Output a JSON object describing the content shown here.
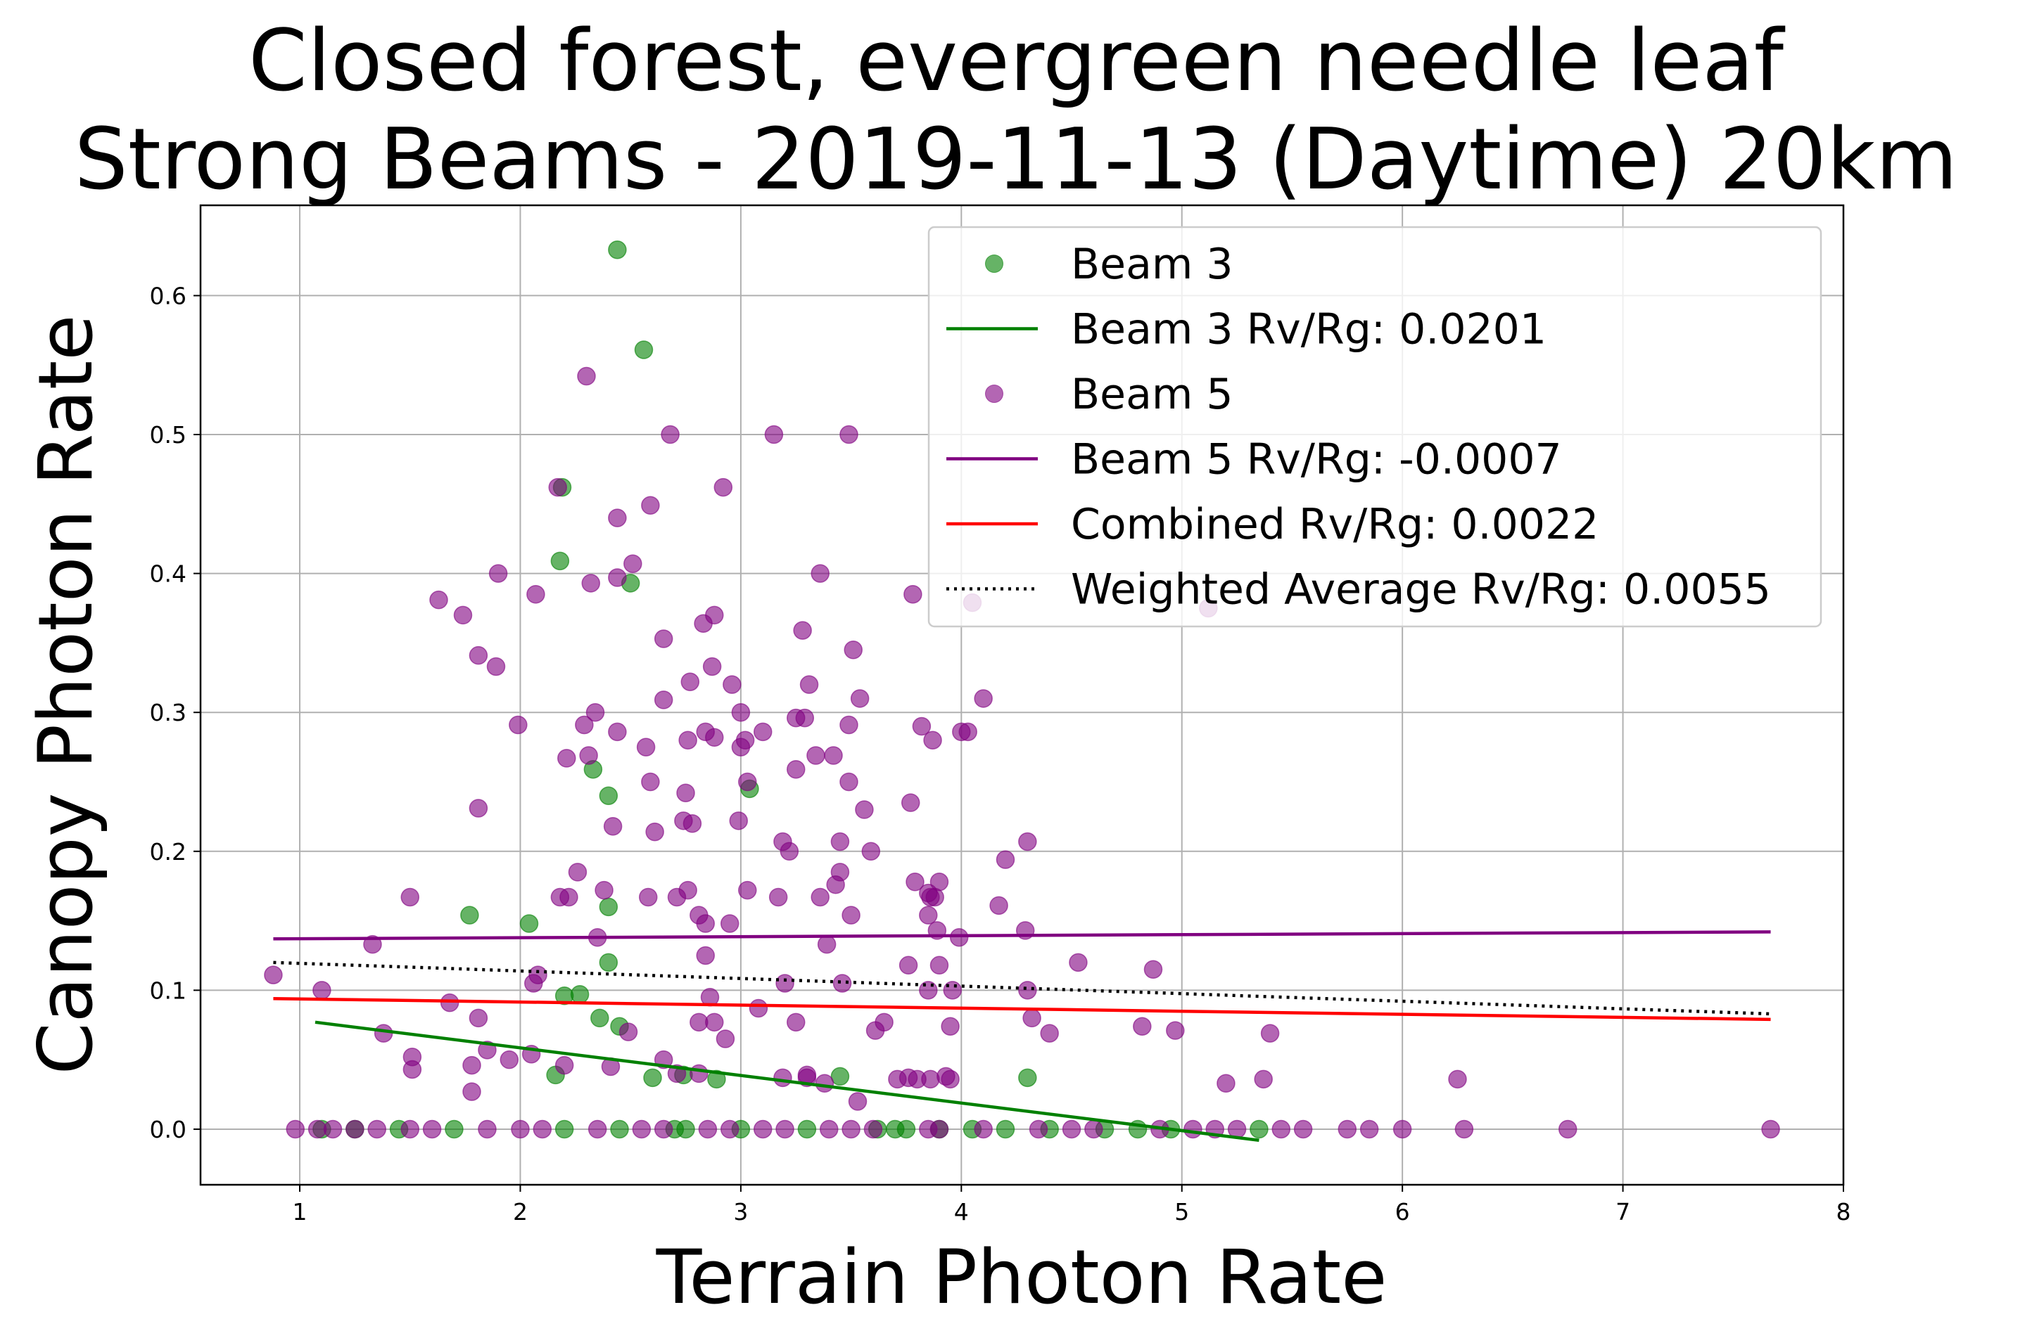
{
  "chart_data": {
    "type": "scatter",
    "title_line1": "Closed forest, evergreen needle leaf",
    "title_line2": "Strong Beams - 2019-11-13 (Daytime) 20km",
    "xlabel": "Terrain Photon Rate",
    "ylabel": "Canopy Photon Rate",
    "xlim": [
      0.55,
      8.0
    ],
    "ylim": [
      -0.04,
      0.665
    ],
    "xticks": [
      1,
      2,
      3,
      4,
      5,
      6,
      7,
      8
    ],
    "yticks": [
      0.0,
      0.1,
      0.2,
      0.3,
      0.4,
      0.5,
      0.6
    ],
    "xtick_labels": [
      "1",
      "2",
      "3",
      "4",
      "5",
      "6",
      "7",
      "8"
    ],
    "ytick_labels": [
      "0.0",
      "0.1",
      "0.2",
      "0.3",
      "0.4",
      "0.5",
      "0.6"
    ],
    "grid": true,
    "legend_position": "top-right",
    "colors": {
      "beam3": "#008000",
      "beam5": "#800080",
      "combined": "#ff0000",
      "weighted": "#000000"
    },
    "series": [
      {
        "name": "Beam 3",
        "kind": "scatter",
        "color": "#008000",
        "points": [
          [
            2.44,
            0.633
          ],
          [
            2.56,
            0.561
          ],
          [
            2.19,
            0.462
          ],
          [
            2.18,
            0.409
          ],
          [
            2.5,
            0.393
          ],
          [
            2.33,
            0.259
          ],
          [
            2.4,
            0.24
          ],
          [
            3.04,
            0.245
          ],
          [
            1.77,
            0.154
          ],
          [
            2.04,
            0.148
          ],
          [
            2.4,
            0.16
          ],
          [
            2.4,
            0.12
          ],
          [
            2.2,
            0.096
          ],
          [
            2.27,
            0.097
          ],
          [
            2.36,
            0.08
          ],
          [
            2.45,
            0.074
          ],
          [
            2.16,
            0.039
          ],
          [
            2.6,
            0.037
          ],
          [
            2.74,
            0.039
          ],
          [
            2.89,
            0.036
          ],
          [
            3.45,
            0.038
          ],
          [
            4.3,
            0.037
          ],
          [
            1.1,
            0.0
          ],
          [
            1.25,
            0.0
          ],
          [
            1.45,
            0.0
          ],
          [
            1.7,
            0.0
          ],
          [
            2.2,
            0.0
          ],
          [
            2.45,
            0.0
          ],
          [
            2.7,
            0.0
          ],
          [
            2.75,
            0.0
          ],
          [
            3.0,
            0.0
          ],
          [
            3.3,
            0.0
          ],
          [
            3.62,
            0.0
          ],
          [
            3.7,
            0.0
          ],
          [
            3.75,
            0.0
          ],
          [
            3.9,
            0.0
          ],
          [
            4.05,
            0.0
          ],
          [
            4.2,
            0.0
          ],
          [
            4.4,
            0.0
          ],
          [
            4.65,
            0.0
          ],
          [
            4.8,
            0.0
          ],
          [
            4.95,
            0.0
          ],
          [
            5.35,
            0.0
          ]
        ]
      },
      {
        "name": "Beam 3 Rv/Rg: 0.0201",
        "kind": "line",
        "color": "#008000",
        "points": [
          [
            1.07,
            0.077
          ],
          [
            5.35,
            -0.008
          ]
        ]
      },
      {
        "name": "Beam 5",
        "kind": "scatter",
        "color": "#800080",
        "points": [
          [
            2.3,
            0.542
          ],
          [
            2.68,
            0.5
          ],
          [
            3.15,
            0.5
          ],
          [
            3.49,
            0.5
          ],
          [
            2.17,
            0.462
          ],
          [
            2.92,
            0.462
          ],
          [
            2.59,
            0.449
          ],
          [
            2.44,
            0.44
          ],
          [
            2.51,
            0.407
          ],
          [
            1.9,
            0.4
          ],
          [
            2.44,
            0.397
          ],
          [
            3.36,
            0.4
          ],
          [
            2.32,
            0.393
          ],
          [
            2.07,
            0.385
          ],
          [
            1.63,
            0.381
          ],
          [
            3.78,
            0.385
          ],
          [
            4.05,
            0.379
          ],
          [
            5.12,
            0.375
          ],
          [
            1.74,
            0.37
          ],
          [
            2.88,
            0.37
          ],
          [
            2.83,
            0.364
          ],
          [
            3.28,
            0.359
          ],
          [
            2.65,
            0.353
          ],
          [
            3.51,
            0.345
          ],
          [
            1.81,
            0.341
          ],
          [
            1.89,
            0.333
          ],
          [
            2.87,
            0.333
          ],
          [
            2.77,
            0.322
          ],
          [
            2.96,
            0.32
          ],
          [
            3.31,
            0.32
          ],
          [
            4.1,
            0.31
          ],
          [
            2.65,
            0.309
          ],
          [
            3.54,
            0.31
          ],
          [
            2.34,
            0.3
          ],
          [
            3.0,
            0.3
          ],
          [
            3.25,
            0.296
          ],
          [
            3.29,
            0.296
          ],
          [
            1.99,
            0.291
          ],
          [
            2.29,
            0.291
          ],
          [
            3.49,
            0.291
          ],
          [
            3.82,
            0.29
          ],
          [
            2.44,
            0.286
          ],
          [
            2.84,
            0.286
          ],
          [
            3.1,
            0.286
          ],
          [
            4.0,
            0.286
          ],
          [
            4.03,
            0.286
          ],
          [
            2.88,
            0.282
          ],
          [
            3.02,
            0.28
          ],
          [
            3.87,
            0.28
          ],
          [
            2.76,
            0.28
          ],
          [
            2.57,
            0.275
          ],
          [
            3.0,
            0.275
          ],
          [
            2.31,
            0.269
          ],
          [
            3.34,
            0.269
          ],
          [
            3.42,
            0.269
          ],
          [
            2.21,
            0.267
          ],
          [
            3.25,
            0.259
          ],
          [
            2.59,
            0.25
          ],
          [
            3.03,
            0.25
          ],
          [
            3.49,
            0.25
          ],
          [
            2.75,
            0.242
          ],
          [
            3.77,
            0.235
          ],
          [
            1.81,
            0.231
          ],
          [
            3.56,
            0.23
          ],
          [
            2.74,
            0.222
          ],
          [
            2.42,
            0.218
          ],
          [
            2.61,
            0.214
          ],
          [
            2.78,
            0.22
          ],
          [
            2.99,
            0.222
          ],
          [
            3.19,
            0.207
          ],
          [
            3.45,
            0.207
          ],
          [
            4.3,
            0.207
          ],
          [
            3.22,
            0.2
          ],
          [
            3.59,
            0.2
          ],
          [
            4.2,
            0.194
          ],
          [
            2.26,
            0.185
          ],
          [
            3.45,
            0.185
          ],
          [
            3.79,
            0.178
          ],
          [
            3.9,
            0.178
          ],
          [
            2.38,
            0.172
          ],
          [
            2.76,
            0.172
          ],
          [
            3.03,
            0.172
          ],
          [
            3.43,
            0.176
          ],
          [
            3.85,
            0.17
          ],
          [
            1.5,
            0.167
          ],
          [
            2.18,
            0.167
          ],
          [
            2.22,
            0.167
          ],
          [
            2.58,
            0.167
          ],
          [
            2.71,
            0.167
          ],
          [
            3.17,
            0.167
          ],
          [
            3.36,
            0.167
          ],
          [
            3.86,
            0.167
          ],
          [
            3.88,
            0.167
          ],
          [
            4.17,
            0.161
          ],
          [
            2.81,
            0.154
          ],
          [
            3.5,
            0.154
          ],
          [
            3.85,
            0.154
          ],
          [
            2.84,
            0.148
          ],
          [
            2.95,
            0.148
          ],
          [
            3.89,
            0.143
          ],
          [
            4.29,
            0.143
          ],
          [
            2.35,
            0.138
          ],
          [
            3.99,
            0.138
          ],
          [
            1.33,
            0.133
          ],
          [
            3.39,
            0.133
          ],
          [
            2.84,
            0.125
          ],
          [
            4.53,
            0.12
          ],
          [
            3.76,
            0.118
          ],
          [
            3.9,
            0.118
          ],
          [
            4.87,
            0.115
          ],
          [
            0.88,
            0.111
          ],
          [
            2.08,
            0.111
          ],
          [
            2.06,
            0.105
          ],
          [
            3.2,
            0.105
          ],
          [
            3.46,
            0.105
          ],
          [
            3.85,
            0.1
          ],
          [
            4.3,
            0.1
          ],
          [
            1.1,
            0.1
          ],
          [
            3.96,
            0.1
          ],
          [
            2.86,
            0.095
          ],
          [
            1.68,
            0.091
          ],
          [
            3.08,
            0.087
          ],
          [
            1.81,
            0.08
          ],
          [
            2.49,
            0.07
          ],
          [
            2.81,
            0.077
          ],
          [
            2.88,
            0.077
          ],
          [
            3.25,
            0.077
          ],
          [
            3.65,
            0.077
          ],
          [
            3.95,
            0.074
          ],
          [
            4.32,
            0.08
          ],
          [
            4.82,
            0.074
          ],
          [
            3.61,
            0.071
          ],
          [
            1.38,
            0.069
          ],
          [
            4.4,
            0.069
          ],
          [
            4.97,
            0.071
          ],
          [
            5.4,
            0.069
          ],
          [
            2.93,
            0.065
          ],
          [
            1.85,
            0.057
          ],
          [
            2.05,
            0.054
          ],
          [
            1.51,
            0.052
          ],
          [
            1.95,
            0.05
          ],
          [
            2.65,
            0.05
          ],
          [
            1.78,
            0.046
          ],
          [
            2.2,
            0.046
          ],
          [
            2.41,
            0.045
          ],
          [
            1.51,
            0.043
          ],
          [
            2.71,
            0.04
          ],
          [
            3.19,
            0.037
          ],
          [
            3.3,
            0.037
          ],
          [
            3.38,
            0.033
          ],
          [
            3.71,
            0.036
          ],
          [
            3.86,
            0.036
          ],
          [
            3.95,
            0.036
          ],
          [
            3.76,
            0.037
          ],
          [
            3.8,
            0.036
          ],
          [
            3.93,
            0.038
          ],
          [
            5.2,
            0.033
          ],
          [
            5.37,
            0.036
          ],
          [
            6.25,
            0.036
          ],
          [
            2.81,
            0.04
          ],
          [
            3.3,
            0.039
          ],
          [
            1.78,
            0.027
          ],
          [
            3.53,
            0.02
          ],
          [
            0.98,
            0.0
          ],
          [
            1.08,
            0.0
          ],
          [
            1.15,
            0.0
          ],
          [
            1.25,
            0.0
          ],
          [
            1.35,
            0.0
          ],
          [
            1.5,
            0.0
          ],
          [
            1.6,
            0.0
          ],
          [
            1.85,
            0.0
          ],
          [
            2.0,
            0.0
          ],
          [
            2.1,
            0.0
          ],
          [
            2.35,
            0.0
          ],
          [
            2.55,
            0.0
          ],
          [
            2.65,
            0.0
          ],
          [
            2.85,
            0.0
          ],
          [
            2.95,
            0.0
          ],
          [
            3.1,
            0.0
          ],
          [
            3.2,
            0.0
          ],
          [
            3.4,
            0.0
          ],
          [
            3.5,
            0.0
          ],
          [
            3.6,
            0.0
          ],
          [
            3.85,
            0.0
          ],
          [
            3.9,
            0.0
          ],
          [
            4.1,
            0.0
          ],
          [
            4.35,
            0.0
          ],
          [
            4.5,
            0.0
          ],
          [
            4.6,
            0.0
          ],
          [
            4.9,
            0.0
          ],
          [
            5.05,
            0.0
          ],
          [
            5.15,
            0.0
          ],
          [
            5.25,
            0.0
          ],
          [
            5.45,
            0.0
          ],
          [
            5.55,
            0.0
          ],
          [
            5.75,
            0.0
          ],
          [
            5.85,
            0.0
          ],
          [
            6.0,
            0.0
          ],
          [
            6.28,
            0.0
          ],
          [
            6.75,
            0.0
          ],
          [
            7.67,
            0.0
          ]
        ]
      },
      {
        "name": "Beam 5 Rv/Rg: -0.0007",
        "kind": "line",
        "color": "#800080",
        "points": [
          [
            0.88,
            0.137
          ],
          [
            7.67,
            0.142
          ]
        ]
      },
      {
        "name": "Combined Rv/Rg: 0.0022",
        "kind": "line",
        "color": "#ff0000",
        "points": [
          [
            0.88,
            0.094
          ],
          [
            7.67,
            0.079
          ]
        ]
      },
      {
        "name": "Weighted Average Rv/Rg: 0.0055",
        "kind": "line",
        "dash": "dotted",
        "color": "#000000",
        "points": [
          [
            0.88,
            0.12
          ],
          [
            7.67,
            0.083
          ]
        ]
      }
    ],
    "legend": [
      {
        "label": "Beam 3",
        "kind": "scatter",
        "color": "#008000"
      },
      {
        "label": "Beam 3 Rv/Rg: 0.0201",
        "kind": "line",
        "color": "#008000"
      },
      {
        "label": "Beam 5",
        "kind": "scatter",
        "color": "#800080"
      },
      {
        "label": "Beam 5 Rv/Rg: -0.0007",
        "kind": "line",
        "color": "#800080"
      },
      {
        "label": "Combined Rv/Rg: 0.0022",
        "kind": "line",
        "color": "#ff0000"
      },
      {
        "label": "Weighted Average Rv/Rg: 0.0055",
        "kind": "dotted",
        "color": "#000000"
      }
    ]
  }
}
